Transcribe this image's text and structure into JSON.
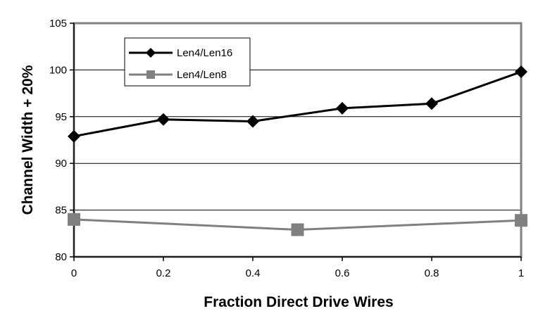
{
  "chart_data": {
    "type": "line",
    "title": "",
    "xlabel": "Fraction Direct Drive Wires",
    "ylabel": "Channel Width + 20%",
    "xlim": [
      0,
      1
    ],
    "ylim": [
      80,
      105
    ],
    "x_ticks": [
      "0",
      "0.2",
      "0.4",
      "0.6",
      "0.8",
      "1"
    ],
    "y_ticks": [
      "80",
      "85",
      "90",
      "95",
      "100",
      "105"
    ],
    "grid": "horizontal",
    "legend_position": "top-left",
    "series": [
      {
        "name": "Len4/Len16",
        "marker": "diamond",
        "color": "#000000",
        "x": [
          0,
          0.2,
          0.4,
          0.6,
          0.8,
          1
        ],
        "y": [
          92.9,
          94.7,
          94.5,
          95.9,
          96.4,
          99.8
        ]
      },
      {
        "name": "Len4/Len8",
        "marker": "square",
        "color": "#808080",
        "x": [
          0,
          0.5,
          1
        ],
        "y": [
          84.0,
          82.9,
          83.9
        ]
      }
    ]
  }
}
